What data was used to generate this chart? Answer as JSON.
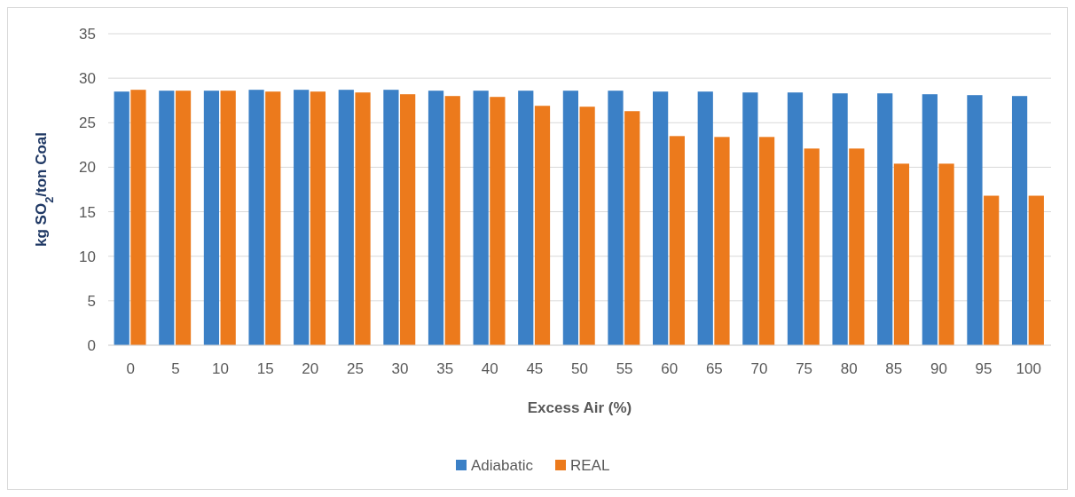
{
  "chart_data": {
    "type": "bar",
    "xlabel": "Excess Air (%)",
    "ylabel": "kg SO$_{2}$/ton Coal",
    "categories": [
      "0",
      "5",
      "10",
      "15",
      "20",
      "25",
      "30",
      "35",
      "40",
      "45",
      "50",
      "55",
      "60",
      "65",
      "70",
      "75",
      "80",
      "85",
      "90",
      "95",
      "100"
    ],
    "series": [
      {
        "name": "Adiabatic",
        "color": "#3b80c6",
        "values": [
          28.5,
          28.6,
          28.6,
          28.7,
          28.7,
          28.7,
          28.7,
          28.6,
          28.6,
          28.6,
          28.6,
          28.6,
          28.5,
          28.5,
          28.4,
          28.4,
          28.3,
          28.3,
          28.2,
          28.1,
          28.0
        ]
      },
      {
        "name": "REAL",
        "color": "#ec7a1c",
        "values": [
          28.7,
          28.6,
          28.6,
          28.5,
          28.5,
          28.4,
          28.2,
          28.0,
          27.9,
          26.9,
          26.8,
          26.3,
          23.5,
          23.4,
          23.4,
          22.1,
          22.1,
          20.4,
          20.4,
          16.8,
          16.8
        ]
      }
    ],
    "ylim": [
      0,
      35
    ],
    "yticks": [
      0,
      5,
      10,
      15,
      20,
      25,
      30,
      35
    ],
    "grid": "y",
    "legend": "bottom"
  }
}
